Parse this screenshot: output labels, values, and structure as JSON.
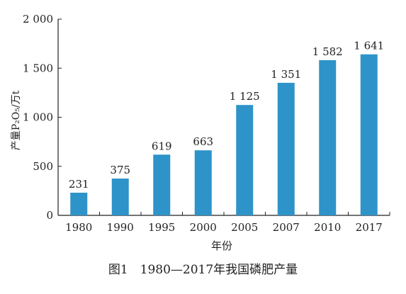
{
  "chart_data": {
    "type": "bar",
    "categories": [
      "1980",
      "1990",
      "1995",
      "2000",
      "2005",
      "2007",
      "2010",
      "2017"
    ],
    "values": [
      231,
      375,
      619,
      663,
      1125,
      1351,
      1582,
      1641
    ],
    "value_labels": [
      "231",
      "375",
      "619",
      "663",
      "1 125",
      "1 351",
      "1 582",
      "1 641"
    ],
    "ylabel": "产量P₂O₅/万t",
    "xlabel": "年份",
    "ylim": [
      0,
      2000
    ],
    "yticks": [
      0,
      500,
      1000,
      1500,
      2000
    ],
    "ytick_labels": [
      "0",
      "500",
      "1 000",
      "1 500",
      "2 000"
    ],
    "bar_color": "#2e93c9",
    "grid": false,
    "legend": "none"
  },
  "caption": "图1　1980—2017年我国磷肥产量"
}
